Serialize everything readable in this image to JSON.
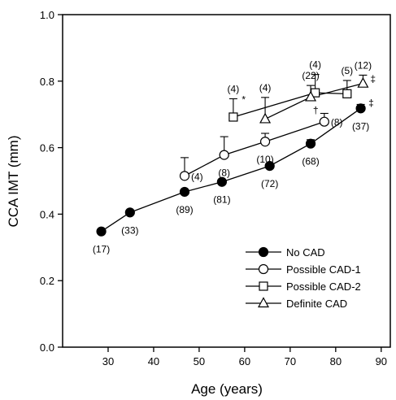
{
  "chart_data": {
    "type": "line",
    "title": "",
    "xlabel": "Age (years)",
    "ylabel": "CCA IMT (mm)",
    "xlim": [
      20,
      92
    ],
    "ylim": [
      0.0,
      1.0
    ],
    "x_ticks": [
      30,
      40,
      50,
      60,
      70,
      80,
      90
    ],
    "y_ticks": [
      0.0,
      0.2,
      0.4,
      0.6,
      0.8,
      1.0
    ],
    "y_tick_labels": [
      "0.0",
      "0.2",
      "0.4",
      "0.6",
      "0.8",
      "1.0"
    ],
    "grid": false,
    "legend_position": "bottom-right",
    "series": [
      {
        "name": "No CAD",
        "marker": "filled-circle",
        "points": [
          {
            "x": 28.5,
            "y": 0.348,
            "err": 0.006,
            "n": "(17)",
            "label_side": "below"
          },
          {
            "x": 34.8,
            "y": 0.405,
            "err": 0.006,
            "n": "(33)",
            "label_side": "below"
          },
          {
            "x": 46.8,
            "y": 0.467,
            "err": 0.006,
            "n": "(89)",
            "label_side": "below"
          },
          {
            "x": 55.0,
            "y": 0.497,
            "err": 0.006,
            "n": "(81)",
            "label_side": "below"
          },
          {
            "x": 65.5,
            "y": 0.545,
            "err": 0.006,
            "n": "(72)",
            "label_side": "below"
          },
          {
            "x": 74.5,
            "y": 0.612,
            "err": 0.012,
            "n": "(68)",
            "label_side": "below"
          },
          {
            "x": 85.5,
            "y": 0.718,
            "err": 0.012,
            "n": "(37)",
            "label_side": "below"
          }
        ]
      },
      {
        "name": "Possible CAD-1",
        "marker": "open-circle",
        "points": [
          {
            "x": 46.8,
            "y": 0.515,
            "err": 0.055,
            "n": "(4)",
            "label_side": "right"
          },
          {
            "x": 55.5,
            "y": 0.578,
            "err": 0.055,
            "n": "(8)",
            "label_side": "below"
          },
          {
            "x": 64.5,
            "y": 0.618,
            "err": 0.025,
            "n": "(10)",
            "label_side": "below"
          },
          {
            "x": 77.5,
            "y": 0.678,
            "err": 0.025,
            "n": "(8)",
            "label_side": "right"
          }
        ]
      },
      {
        "name": "Possible CAD-2",
        "marker": "open-square",
        "points": [
          {
            "x": 57.5,
            "y": 0.692,
            "err": 0.055,
            "n": "(4)",
            "label_side": "above"
          },
          {
            "x": 75.5,
            "y": 0.765,
            "err": 0.055,
            "n": "(4)",
            "label_side": "above"
          },
          {
            "x": 82.5,
            "y": 0.762,
            "err": 0.04,
            "n": "(5)",
            "label_side": "above"
          }
        ]
      },
      {
        "name": "Definite CAD",
        "marker": "open-triangle",
        "points": [
          {
            "x": 64.5,
            "y": 0.686,
            "err": 0.065,
            "n": "(4)",
            "label_side": "above"
          },
          {
            "x": 74.5,
            "y": 0.752,
            "err": 0.035,
            "n": "(22)",
            "label_side": "above"
          },
          {
            "x": 86.0,
            "y": 0.793,
            "err": 0.025,
            "n": "(12)",
            "label_side": "above"
          }
        ]
      }
    ],
    "annotations": [
      {
        "text": "*",
        "x": 59.8,
        "y": 0.735
      },
      {
        "text": "†",
        "x": 75.6,
        "y": 0.703
      },
      {
        "text": "‡",
        "x": 87.8,
        "y": 0.725
      },
      {
        "text": "‡",
        "x": 88.2,
        "y": 0.797
      }
    ]
  }
}
